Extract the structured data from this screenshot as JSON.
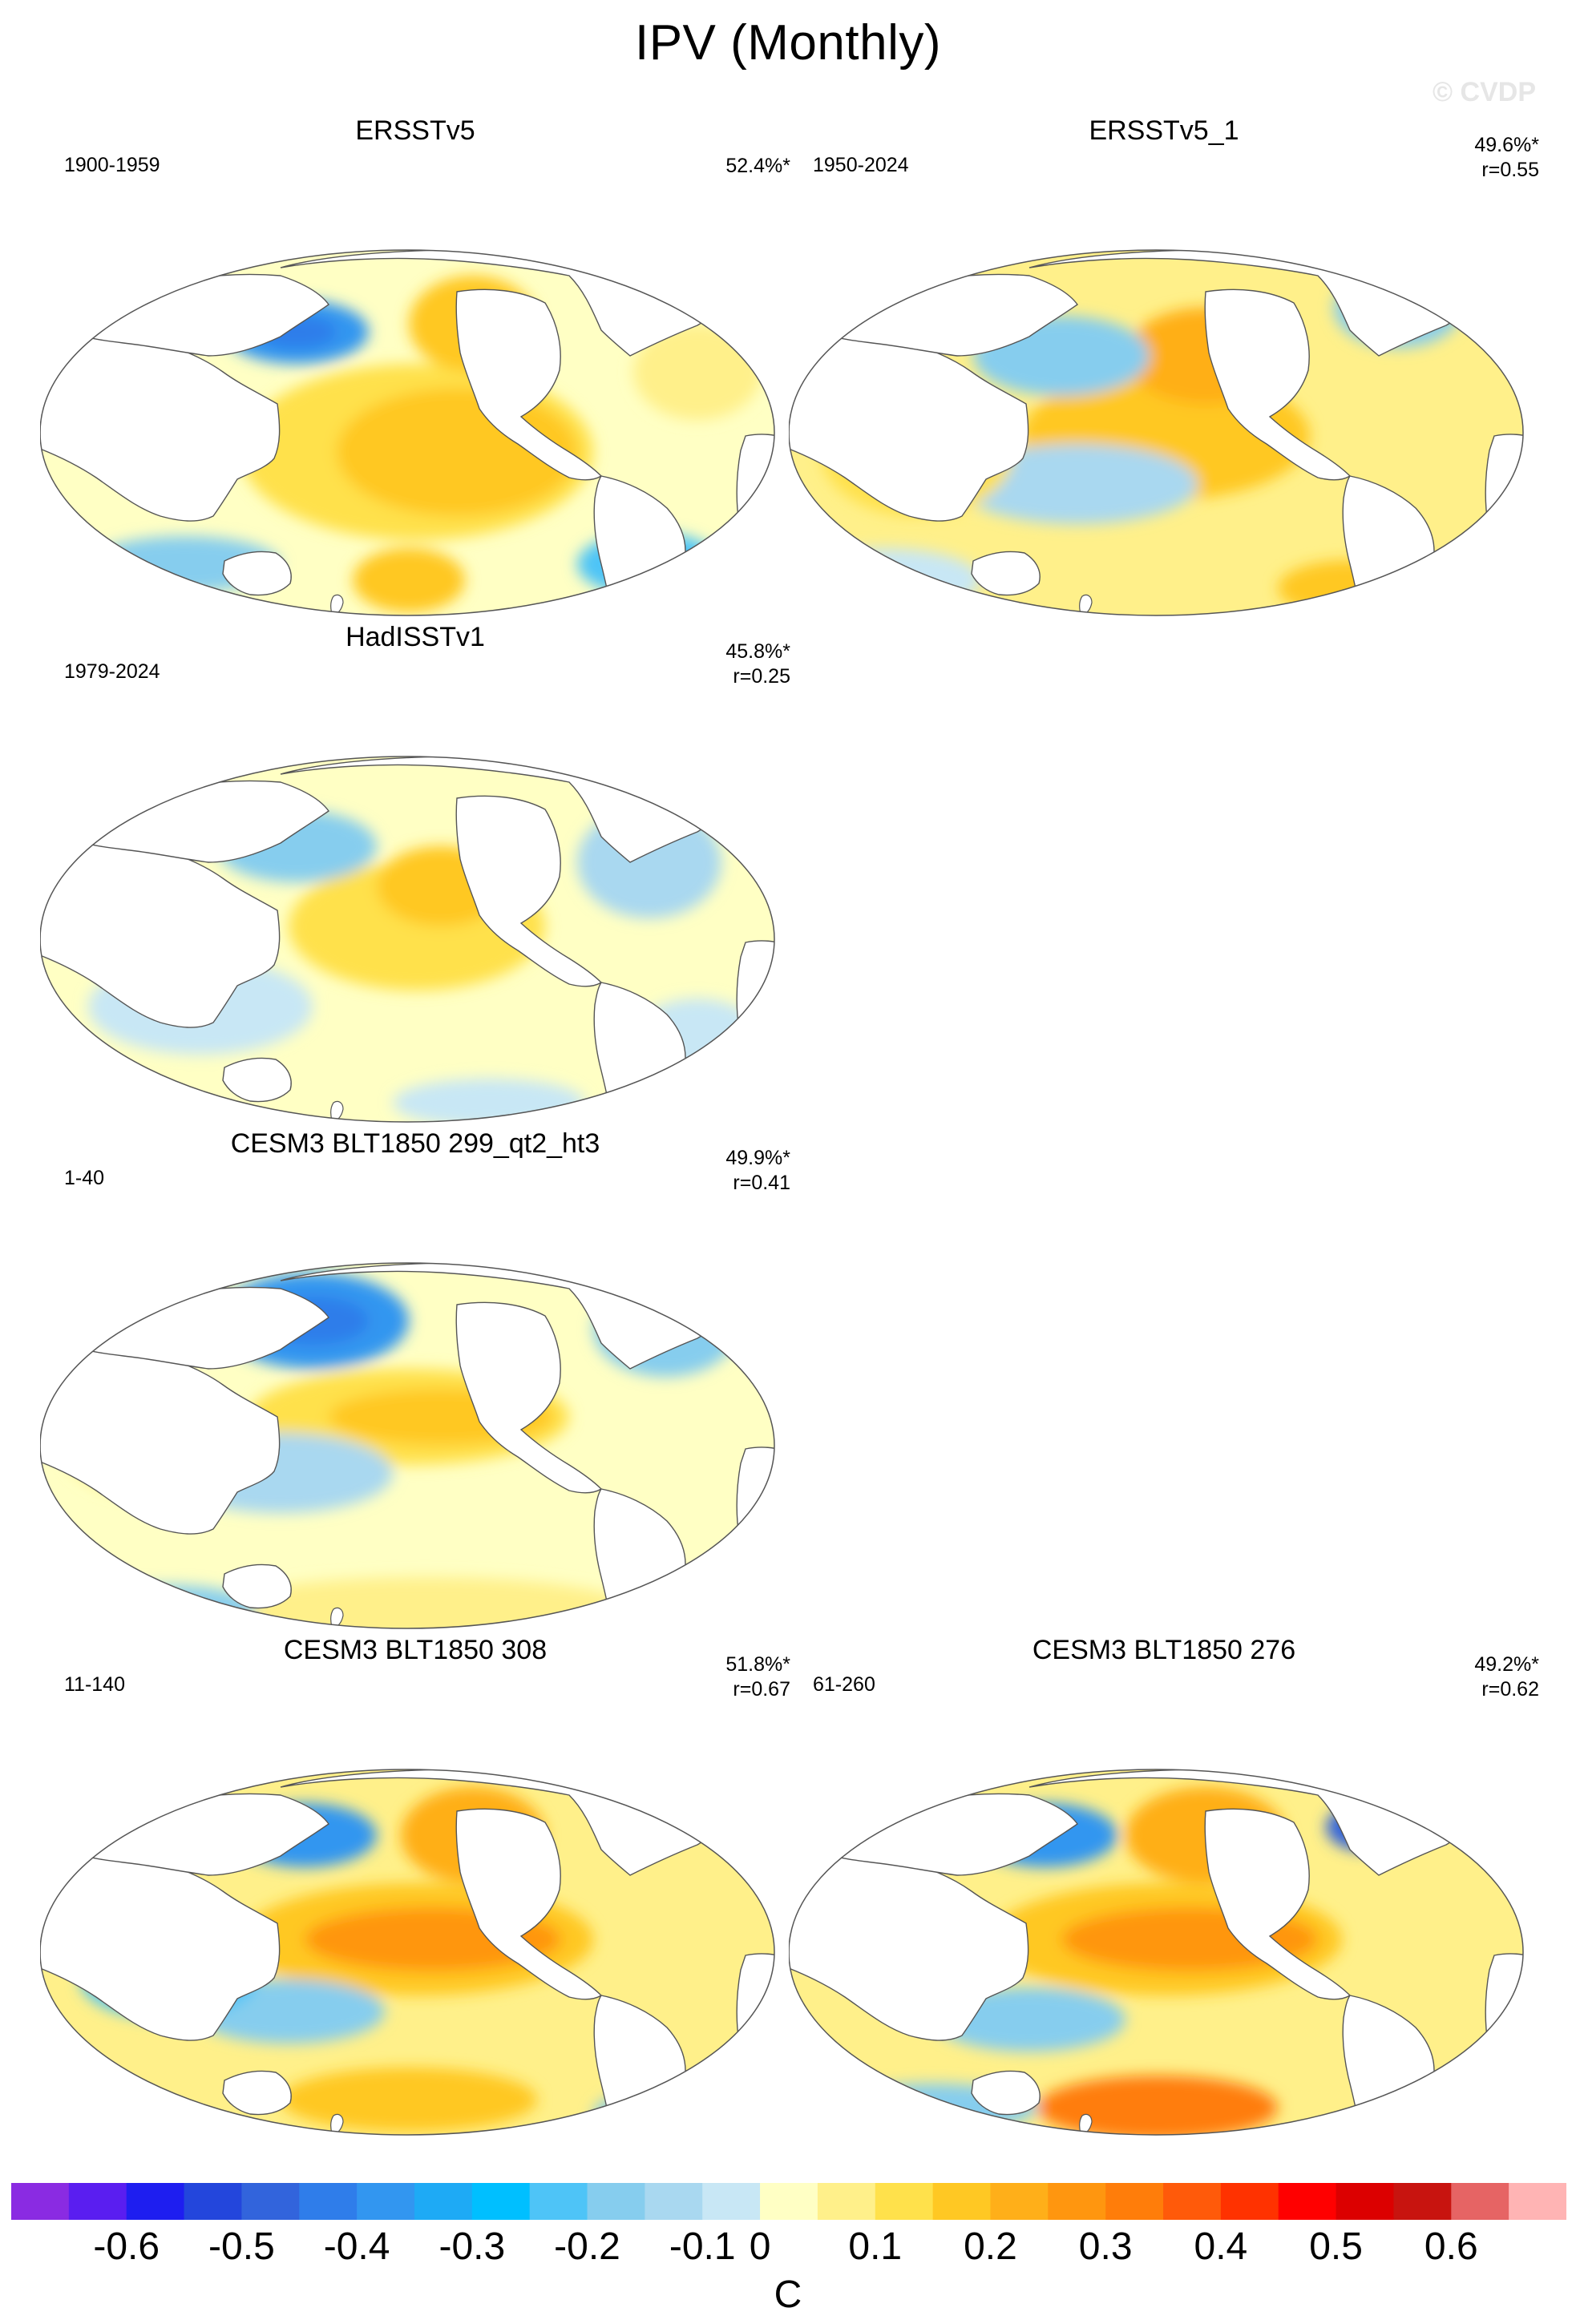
{
  "figure": {
    "title": "IPV (Monthly)",
    "watermark": "© CVDP",
    "colorbar": {
      "colors": [
        "#8a2be2",
        "#5a1ef0",
        "#1e1ef0",
        "#2346dc",
        "#3264dc",
        "#2f7dea",
        "#3296f0",
        "#1eaaf5",
        "#00bfff",
        "#4ec4f7",
        "#86cdee",
        "#a9d8f0",
        "#c8e7f5",
        "#ffffc4",
        "#fff08a",
        "#ffe14b",
        "#ffc823",
        "#ffaf19",
        "#ff960f",
        "#ff7d0a",
        "#ff5a0a",
        "#ff3200",
        "#ff0000",
        "#dc0000",
        "#c8140f",
        "#e66464",
        "#ffb4b4"
      ],
      "tick_labels": [
        "-0.6",
        "-0.5",
        "-0.4",
        "-0.3",
        "-0.2",
        "-0.1",
        "0",
        "0.1",
        "0.2",
        "0.3",
        "0.4",
        "0.5",
        "0.6"
      ],
      "unit": "C"
    }
  },
  "panels": [
    {
      "title": "ERSSTv5",
      "period": "1900-1959",
      "pct": "52.4%*",
      "r": ""
    },
    {
      "title": "ERSSTv5_1",
      "period": "1950-2024",
      "pct": "49.6%*",
      "r": "r=0.55"
    },
    {
      "title": "HadISSTv1",
      "period": "1979-2024",
      "pct": "45.8%*",
      "r": "r=0.25"
    },
    {
      "title": "CESM3 BLT1850 299_qt2_ht3",
      "period": "1-40",
      "pct": "49.9%*",
      "r": "r=0.41"
    },
    {
      "title": "CESM3 BLT1850 308",
      "period": "11-140",
      "pct": "51.8%*",
      "r": "r=0.67"
    },
    {
      "title": "CESM3 BLT1850 276",
      "period": "61-260",
      "pct": "49.2%*",
      "r": "r=0.62"
    }
  ]
}
